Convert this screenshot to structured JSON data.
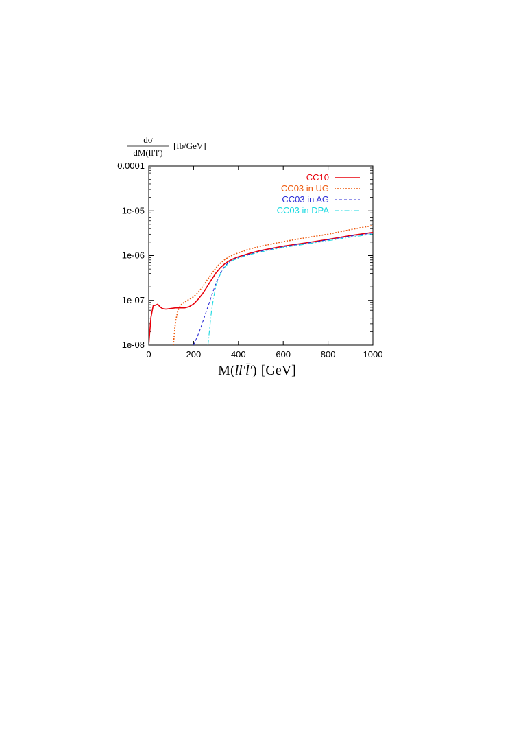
{
  "chart_data": {
    "type": "line",
    "title": "",
    "ylabel": {
      "numerator": "dσ",
      "denominator": "dM(ll′l′)",
      "unit": "[fb/GeV]"
    },
    "xlabel": {
      "prefix": "M(",
      "vars": "ll′l̄′",
      "suffix": ")",
      "unit": "[GeV]"
    },
    "xlim": [
      0,
      1000
    ],
    "ylim": [
      1e-08,
      0.0001
    ],
    "yscale": "log",
    "grid": false,
    "legend_position": "top-right",
    "x_ticks": [
      0,
      200,
      400,
      600,
      800,
      1000
    ],
    "x_tick_labels": [
      "0",
      "200",
      "400",
      "600",
      "800",
      "1000"
    ],
    "y_ticks": [
      0.0001,
      1e-05,
      1e-06,
      1e-07,
      1e-08
    ],
    "y_tick_labels": [
      "0.0001",
      "1e-05",
      "1e-06",
      "1e-07",
      "1e-08"
    ],
    "series": [
      {
        "name": "CC10",
        "color": "#e8000b",
        "dash": "solid",
        "x": [
          0,
          10,
          20,
          30,
          40,
          50,
          60,
          70,
          80,
          100,
          120,
          140,
          160,
          180,
          200,
          220,
          240,
          260,
          280,
          300,
          320,
          340,
          360,
          380,
          400,
          450,
          500,
          600,
          700,
          800,
          900,
          1000
        ],
        "y": [
          1e-08,
          4.2e-08,
          7.6e-08,
          7.8e-08,
          8.2e-08,
          7.2e-08,
          6.6e-08,
          6.4e-08,
          6.4e-08,
          6.6e-08,
          6.8e-08,
          6.8e-08,
          6.8e-08,
          7.2e-08,
          8.3e-08,
          1.05e-07,
          1.4e-07,
          2e-07,
          2.9e-07,
          4.1e-07,
          5.4e-07,
          6.6e-07,
          7.7e-07,
          8.6e-07,
          9.4e-07,
          1.12e-06,
          1.3e-06,
          1.62e-06,
          1.92e-06,
          2.3e-06,
          2.8e-06,
          3.3e-06
        ]
      },
      {
        "name": "CC03 in UG",
        "color": "#ee5a0e",
        "dash": "dotted",
        "x": [
          110,
          115,
          120,
          130,
          140,
          150,
          160,
          180,
          200,
          220,
          240,
          260,
          280,
          300,
          320,
          340,
          360,
          380,
          400,
          450,
          500,
          600,
          700,
          800,
          900,
          1000
        ],
        "y": [
          1e-08,
          2e-08,
          3.5e-08,
          5.8e-08,
          7.5e-08,
          8.5e-08,
          9.2e-08,
          1.05e-07,
          1.2e-07,
          1.5e-07,
          2e-07,
          2.8e-07,
          3.9e-07,
          5.3e-07,
          6.8e-07,
          8.2e-07,
          9.5e-07,
          1.06e-06,
          1.15e-06,
          1.4e-06,
          1.62e-06,
          2.05e-06,
          2.5e-06,
          3e-06,
          3.8e-06,
          4.7e-06
        ]
      },
      {
        "name": "CC03 in AG",
        "color": "#2a2ad6",
        "dash": "dashed",
        "x": [
          200,
          210,
          220,
          230,
          240,
          250,
          260,
          270,
          280,
          290,
          300,
          320,
          340,
          360,
          380,
          400,
          450,
          500,
          600,
          700,
          800,
          900,
          1000
        ],
        "y": [
          1e-08,
          1.3e-08,
          1.7e-08,
          2.3e-08,
          3.2e-08,
          4.5e-08,
          6.3e-08,
          8.8e-08,
          1.25e-07,
          1.75e-07,
          2.4e-07,
          4.1e-07,
          5.9e-07,
          7.3e-07,
          8.3e-07,
          9.1e-07,
          1.08e-06,
          1.25e-06,
          1.58e-06,
          1.88e-06,
          2.25e-06,
          2.72e-06,
          3.2e-06
        ]
      },
      {
        "name": "CC03 in DPA",
        "color": "#19d9e0",
        "dash": "dashdot",
        "x": [
          264,
          268,
          272,
          276,
          280,
          290,
          300,
          310,
          320,
          340,
          360,
          380,
          400,
          450,
          500,
          600,
          700,
          800,
          900,
          1000
        ],
        "y": [
          1e-08,
          1.5e-08,
          2.4e-08,
          3.8e-08,
          5.8e-08,
          1.2e-07,
          2.1e-07,
          3e-07,
          3.9e-07,
          5.6e-07,
          7e-07,
          8e-07,
          8.8e-07,
          1.05e-06,
          1.2e-06,
          1.52e-06,
          1.8e-06,
          2.15e-06,
          2.58e-06,
          3e-06
        ]
      }
    ]
  }
}
